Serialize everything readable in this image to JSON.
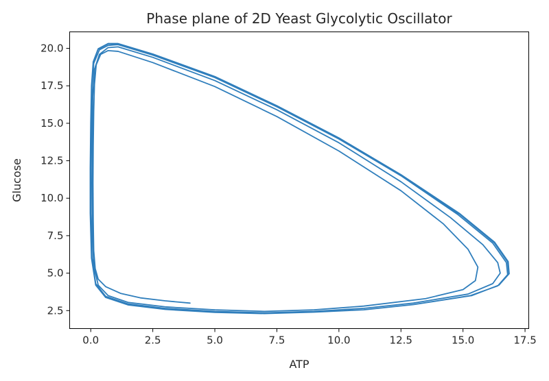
{
  "chart_data": {
    "type": "line",
    "title": "Phase plane of 2D Yeast Glycolytic Oscillator",
    "xlabel": "ATP",
    "ylabel": "Glucose",
    "xlim": [
      -0.85,
      17.65
    ],
    "ylim": [
      1.3,
      21.1
    ],
    "xticks": [
      0.0,
      2.5,
      5.0,
      7.5,
      10.0,
      12.5,
      15.0,
      17.5
    ],
    "xtick_labels": [
      "0.0",
      "2.5",
      "5.0",
      "7.5",
      "10.0",
      "12.5",
      "15.0",
      "17.5"
    ],
    "yticks": [
      2.5,
      5.0,
      7.5,
      10.0,
      12.5,
      15.0,
      17.5,
      20.0
    ],
    "ytick_labels": [
      "2.5",
      "5.0",
      "7.5",
      "10.0",
      "12.5",
      "15.0",
      "17.5",
      "20.0"
    ],
    "grid": false,
    "legend": "none",
    "series": [
      {
        "color": "#2f7ebc",
        "points": [
          [
            4.0,
            3.0
          ],
          [
            3.0,
            3.15
          ],
          [
            2.0,
            3.35
          ],
          [
            1.2,
            3.65
          ],
          [
            0.6,
            4.1
          ],
          [
            0.3,
            4.6
          ],
          [
            0.18,
            5.3
          ],
          [
            0.12,
            6.5
          ],
          [
            0.1,
            8.5
          ],
          [
            0.09,
            11.0
          ],
          [
            0.1,
            13.5
          ],
          [
            0.12,
            15.8
          ],
          [
            0.15,
            17.6
          ],
          [
            0.22,
            18.9
          ],
          [
            0.4,
            19.6
          ],
          [
            0.7,
            19.85
          ],
          [
            1.1,
            19.8
          ],
          [
            2.5,
            19.05
          ],
          [
            5.0,
            17.45
          ],
          [
            7.5,
            15.45
          ],
          [
            10.0,
            13.15
          ],
          [
            12.5,
            10.5
          ],
          [
            14.2,
            8.3
          ],
          [
            15.2,
            6.6
          ],
          [
            15.6,
            5.4
          ],
          [
            15.5,
            4.5
          ],
          [
            15.0,
            3.9
          ],
          [
            13.5,
            3.3
          ],
          [
            11.0,
            2.8
          ],
          [
            9.0,
            2.55
          ],
          [
            7.0,
            2.45
          ],
          [
            5.0,
            2.55
          ],
          [
            3.0,
            2.75
          ],
          [
            1.5,
            3.05
          ],
          [
            0.7,
            3.5
          ],
          [
            0.3,
            4.2
          ],
          [
            0.12,
            5.5
          ],
          [
            0.06,
            8.0
          ],
          [
            0.05,
            11.0
          ],
          [
            0.06,
            14.0
          ],
          [
            0.08,
            16.8
          ],
          [
            0.15,
            18.6
          ],
          [
            0.35,
            19.6
          ],
          [
            0.7,
            20.05
          ],
          [
            1.1,
            20.1
          ],
          [
            2.5,
            19.4
          ],
          [
            5.0,
            17.85
          ],
          [
            7.5,
            15.9
          ],
          [
            10.0,
            13.7
          ],
          [
            12.5,
            11.1
          ],
          [
            14.5,
            8.7
          ],
          [
            15.8,
            6.9
          ],
          [
            16.4,
            5.7
          ],
          [
            16.5,
            5.0
          ],
          [
            16.2,
            4.3
          ],
          [
            15.2,
            3.6
          ],
          [
            13.0,
            3.0
          ],
          [
            11.0,
            2.65
          ],
          [
            9.0,
            2.45
          ],
          [
            7.0,
            2.35
          ],
          [
            5.0,
            2.45
          ],
          [
            3.0,
            2.65
          ],
          [
            1.5,
            2.95
          ],
          [
            0.6,
            3.45
          ],
          [
            0.2,
            4.3
          ],
          [
            0.05,
            6.0
          ],
          [
            0.0,
            9.0
          ],
          [
            0.0,
            12.0
          ],
          [
            0.02,
            15.0
          ],
          [
            0.05,
            17.5
          ],
          [
            0.12,
            19.0
          ],
          [
            0.35,
            19.9
          ],
          [
            0.7,
            20.2
          ],
          [
            1.1,
            20.25
          ],
          [
            2.5,
            19.55
          ],
          [
            5.0,
            18.05
          ],
          [
            7.5,
            16.1
          ],
          [
            10.0,
            13.95
          ],
          [
            12.5,
            11.5
          ],
          [
            14.8,
            8.9
          ],
          [
            16.2,
            7.0
          ],
          [
            16.75,
            5.7
          ],
          [
            16.8,
            4.9
          ],
          [
            16.4,
            4.15
          ],
          [
            15.3,
            3.5
          ],
          [
            13.0,
            2.9
          ],
          [
            11.0,
            2.55
          ],
          [
            9.0,
            2.4
          ],
          [
            7.0,
            2.3
          ],
          [
            5.0,
            2.4
          ],
          [
            3.0,
            2.6
          ],
          [
            1.5,
            2.9
          ],
          [
            0.6,
            3.4
          ],
          [
            0.2,
            4.2
          ],
          [
            0.03,
            6.0
          ],
          [
            -0.02,
            9.0
          ],
          [
            -0.02,
            12.0
          ],
          [
            0.0,
            15.0
          ],
          [
            0.03,
            17.5
          ],
          [
            0.1,
            19.1
          ],
          [
            0.3,
            19.95
          ],
          [
            0.7,
            20.3
          ],
          [
            1.1,
            20.3
          ],
          [
            2.5,
            19.6
          ],
          [
            5.0,
            18.1
          ],
          [
            7.5,
            16.15
          ],
          [
            10.0,
            14.0
          ],
          [
            12.5,
            11.55
          ],
          [
            14.85,
            8.95
          ],
          [
            16.25,
            7.05
          ],
          [
            16.8,
            5.75
          ],
          [
            16.85,
            4.95
          ],
          [
            16.45,
            4.2
          ],
          [
            15.35,
            3.5
          ],
          [
            13.0,
            2.9
          ],
          [
            11.0,
            2.55
          ],
          [
            9.0,
            2.4
          ],
          [
            7.0,
            2.3
          ],
          [
            5.0,
            2.38
          ],
          [
            3.0,
            2.58
          ],
          [
            1.5,
            2.88
          ],
          [
            0.6,
            3.38
          ],
          [
            0.2,
            4.2
          ],
          [
            0.03,
            6.0
          ],
          [
            -0.02,
            9.0
          ],
          [
            -0.02,
            12.0
          ],
          [
            0.0,
            15.0
          ],
          [
            0.03,
            17.5
          ],
          [
            0.1,
            19.1
          ],
          [
            0.3,
            19.97
          ],
          [
            0.7,
            20.32
          ],
          [
            1.1,
            20.32
          ],
          [
            2.5,
            19.62
          ],
          [
            5.0,
            18.12
          ],
          [
            7.5,
            16.17
          ],
          [
            10.0,
            14.02
          ],
          [
            12.5,
            11.57
          ],
          [
            14.87,
            8.97
          ],
          [
            16.27,
            7.07
          ],
          [
            16.82,
            5.77
          ],
          [
            16.86,
            4.96
          ],
          [
            16.45,
            4.2
          ],
          [
            15.35,
            3.5
          ]
        ]
      }
    ]
  }
}
